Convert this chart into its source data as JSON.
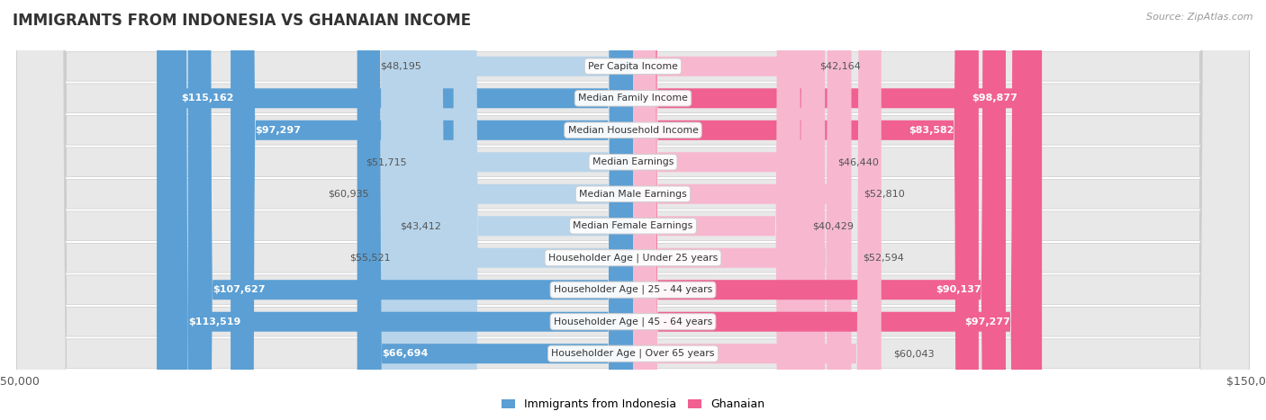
{
  "title": "IMMIGRANTS FROM INDONESIA VS GHANAIAN INCOME",
  "source": "Source: ZipAtlas.com",
  "categories": [
    "Per Capita Income",
    "Median Family Income",
    "Median Household Income",
    "Median Earnings",
    "Median Male Earnings",
    "Median Female Earnings",
    "Householder Age | Under 25 years",
    "Householder Age | 25 - 44 years",
    "Householder Age | 45 - 64 years",
    "Householder Age | Over 65 years"
  ],
  "indonesia_values": [
    48195,
    115162,
    97297,
    51715,
    60935,
    43412,
    55521,
    107627,
    113519,
    66694
  ],
  "ghanaian_values": [
    42164,
    98877,
    83582,
    46440,
    52810,
    40429,
    52594,
    90137,
    97277,
    60043
  ],
  "indonesia_labels": [
    "$48,195",
    "$115,162",
    "$97,297",
    "$51,715",
    "$60,935",
    "$43,412",
    "$55,521",
    "$107,627",
    "$113,519",
    "$66,694"
  ],
  "ghanaian_labels": [
    "$42,164",
    "$98,877",
    "$83,582",
    "$46,440",
    "$52,810",
    "$40,429",
    "$52,594",
    "$90,137",
    "$97,277",
    "$60,043"
  ],
  "indonesia_color_light": "#b8d4ea",
  "indonesia_color_dark": "#5b9fd4",
  "ghanaian_color_light": "#f7b8cf",
  "ghanaian_color_dark": "#f06090",
  "max_value": 150000,
  "background_color": "#ffffff",
  "row_bg_color": "#e8e8e8",
  "label_fontsize": 8.0,
  "cat_fontsize": 7.8,
  "title_fontsize": 12,
  "axis_label_fontsize": 9,
  "large_threshold": 65000
}
